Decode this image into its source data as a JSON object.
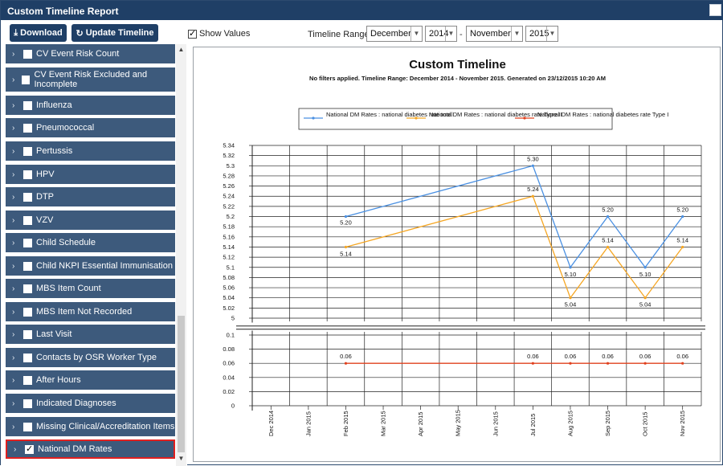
{
  "window": {
    "title": "Custom Timeline Report"
  },
  "toolbar": {
    "download_label": "Download",
    "update_label": "Update Timeline",
    "show_values_label": "Show Values",
    "show_values_checked": true,
    "range_label": "Timeline Range:",
    "from_month": "December",
    "from_year": "2014",
    "to_month": "November",
    "to_year": "2015",
    "range_separator": "-"
  },
  "sidebar": {
    "items": [
      {
        "label": "CV Event Risk Count",
        "checked": false
      },
      {
        "label": "CV Event Risk Excluded and Incomplete",
        "checked": false
      },
      {
        "label": "Influenza",
        "checked": false
      },
      {
        "label": "Pneumococcal",
        "checked": false
      },
      {
        "label": "Pertussis",
        "checked": false
      },
      {
        "label": "HPV",
        "checked": false
      },
      {
        "label": "DTP",
        "checked": false
      },
      {
        "label": "VZV",
        "checked": false
      },
      {
        "label": "Child Schedule",
        "checked": false
      },
      {
        "label": "Child NKPI Essential Immunisation",
        "checked": false
      },
      {
        "label": "MBS Item Count",
        "checked": false
      },
      {
        "label": "MBS Item Not Recorded",
        "checked": false
      },
      {
        "label": "Last Visit",
        "checked": false
      },
      {
        "label": "Contacts by OSR Worker Type",
        "checked": false
      },
      {
        "label": "After Hours",
        "checked": false
      },
      {
        "label": "Indicated Diagnoses",
        "checked": false
      },
      {
        "label": "Missing Clinical/Accreditation Items",
        "checked": false
      },
      {
        "label": "National DM Rates",
        "checked": true
      }
    ]
  },
  "colors": {
    "total": "#4a90e2",
    "type2": "#f5a623",
    "type1": "#e0401e"
  },
  "chart_data": {
    "type": "line",
    "title": "Custom Timeline",
    "subtitle": "No filters applied. Timeline Range: December 2014 - November 2015. Generated on 23/12/2015 10:20 AM",
    "categories": [
      "Dec 2014",
      "Jan 2015",
      "Feb 2015",
      "Mar 2015",
      "Apr 2015",
      "May 2015",
      "Jun 2015",
      "Jul 2015",
      "Aug 2015",
      "Sep 2015",
      "Oct 2015",
      "Nov 2015"
    ],
    "series": [
      {
        "name": "National DM Rates : national diabetes rate total",
        "color_key": "total",
        "values": [
          null,
          null,
          5.2,
          null,
          null,
          null,
          null,
          5.3,
          5.1,
          5.2,
          5.1,
          5.2
        ],
        "labels": [
          "",
          "",
          "5.20",
          "",
          "",
          "",
          "",
          "5.30",
          "5.10",
          "5.20",
          "5.10",
          "5.20"
        ]
      },
      {
        "name": "National DM Rates : national diabetes rate Type II",
        "color_key": "type2",
        "values": [
          null,
          null,
          5.14,
          null,
          null,
          null,
          null,
          5.24,
          5.04,
          5.14,
          5.04,
          5.14
        ],
        "labels": [
          "",
          "",
          "5.14",
          "",
          "",
          "",
          "",
          "5.24",
          "5.04",
          "5.14",
          "5.04",
          "5.14"
        ]
      },
      {
        "name": "National DM Rates : national diabetes rate Type I",
        "color_key": "type1",
        "values": [
          null,
          null,
          0.06,
          null,
          null,
          null,
          null,
          0.06,
          0.06,
          0.06,
          0.06,
          0.06
        ],
        "labels": [
          "",
          "",
          "0.06",
          "",
          "",
          "",
          "",
          "0.06",
          "0.06",
          "0.06",
          "0.06",
          "0.06"
        ]
      }
    ],
    "upper_axis": {
      "range": [
        5.0,
        5.34
      ],
      "ticks": [
        "5.34",
        "5.32",
        "5.3",
        "5.28",
        "5.26",
        "5.24",
        "5.22",
        "5.2",
        "5.18",
        "5.16",
        "5.14",
        "5.12",
        "5.1",
        "5.08",
        "5.06",
        "5.04",
        "5.02",
        "5"
      ]
    },
    "lower_axis": {
      "range": [
        0,
        0.1
      ],
      "ticks": [
        "0.1",
        "0.08",
        "0.06",
        "0.04",
        "0.02",
        "0"
      ]
    },
    "axis_break": true,
    "grid": true,
    "legend_position": "top"
  }
}
